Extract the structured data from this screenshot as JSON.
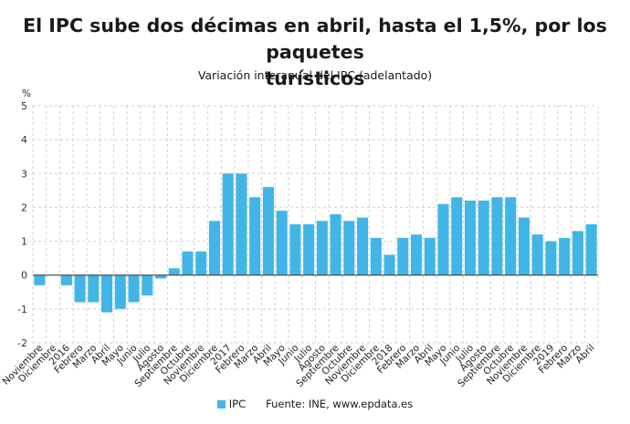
{
  "title_line1": "El IPC sube dos décimas en abril, hasta el 1,5%, por los paquetes",
  "title_line2": "turísticos",
  "subtitle": "Variación interanual del IPC (adelantado)",
  "legend": {
    "series_name": "IPC",
    "source": "Fuente: INE, www.epdata.es"
  },
  "colors": {
    "bar": "#41b6e6",
    "grid": "#d0d0d0",
    "zero": "#333333"
  },
  "chart_data": {
    "type": "bar",
    "ylabel": "%",
    "ylim": [
      -2,
      5
    ],
    "yticks": [
      5,
      4,
      3,
      2,
      1,
      0,
      -1,
      -2
    ],
    "grid": true,
    "legend_position": "bottom",
    "categories": [
      "Noviembre",
      "Diciembre",
      "2016",
      "Febrero",
      "Marzo",
      "Abril",
      "Mayo",
      "Junio",
      "Julio",
      "Agosto",
      "Septiembre",
      "Octubre",
      "Noviembre",
      "Diciembre",
      "2017",
      "Febrero",
      "Marzo",
      "Abril",
      "Mayo",
      "Junio",
      "Julio",
      "Agosto",
      "Septiembre",
      "Octubre",
      "Noviembre",
      "Diciembre",
      "2018",
      "Febrero",
      "Marzo",
      "Abril",
      "Mayo",
      "Junio",
      "Julio",
      "Agosto",
      "Septiembre",
      "Octubre",
      "Noviembre",
      "Diciembre",
      "2019",
      "Febrero",
      "Marzo",
      "Abril"
    ],
    "series": [
      {
        "name": "IPC",
        "values": [
          -0.3,
          0.0,
          -0.3,
          -0.8,
          -0.8,
          -1.1,
          -1.0,
          -0.8,
          -0.6,
          -0.1,
          0.2,
          0.7,
          0.7,
          1.6,
          3.0,
          3.0,
          2.3,
          2.6,
          1.9,
          1.5,
          1.5,
          1.6,
          1.8,
          1.6,
          1.7,
          1.1,
          0.6,
          1.1,
          1.2,
          1.1,
          2.1,
          2.3,
          2.2,
          2.2,
          2.3,
          2.3,
          1.7,
          1.2,
          1.0,
          1.1,
          1.3,
          1.5
        ]
      }
    ]
  }
}
